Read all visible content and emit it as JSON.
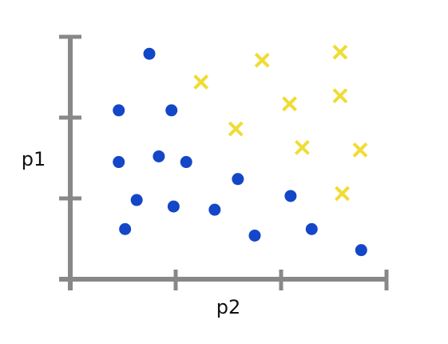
{
  "chart_data": {
    "type": "scatter",
    "title": "",
    "xlabel": "p2",
    "ylabel": "p1",
    "grid": false,
    "legend": "none",
    "xlim": [
      0,
      3
    ],
    "ylim": [
      0,
      3
    ],
    "x_ticks": [
      0,
      1,
      2,
      3
    ],
    "y_ticks": [
      0,
      1,
      2,
      3
    ],
    "colors": {
      "axis": "#888888",
      "circle": "#1446c8",
      "cross": "#f0dc32"
    },
    "series": [
      {
        "marker": "circle",
        "color": "#1446c8",
        "points": [
          {
            "x": 0.75,
            "y": 2.79
          },
          {
            "x": 0.46,
            "y": 2.09
          },
          {
            "x": 0.96,
            "y": 2.09
          },
          {
            "x": 0.46,
            "y": 1.45
          },
          {
            "x": 0.84,
            "y": 1.52
          },
          {
            "x": 1.1,
            "y": 1.45
          },
          {
            "x": 0.63,
            "y": 0.98
          },
          {
            "x": 0.98,
            "y": 0.9
          },
          {
            "x": 1.37,
            "y": 0.86
          },
          {
            "x": 1.59,
            "y": 1.24
          },
          {
            "x": 2.09,
            "y": 1.03
          },
          {
            "x": 0.52,
            "y": 0.62
          },
          {
            "x": 1.75,
            "y": 0.54
          },
          {
            "x": 2.29,
            "y": 0.62
          },
          {
            "x": 2.76,
            "y": 0.36
          }
        ]
      },
      {
        "marker": "cross",
        "color": "#f0dc32",
        "points": [
          {
            "x": 1.24,
            "y": 2.44
          },
          {
            "x": 1.82,
            "y": 2.71
          },
          {
            "x": 2.56,
            "y": 2.81
          },
          {
            "x": 2.08,
            "y": 2.17
          },
          {
            "x": 2.56,
            "y": 2.27
          },
          {
            "x": 1.57,
            "y": 1.86
          },
          {
            "x": 2.2,
            "y": 1.63
          },
          {
            "x": 2.75,
            "y": 1.6
          },
          {
            "x": 2.58,
            "y": 1.06
          }
        ]
      }
    ]
  }
}
